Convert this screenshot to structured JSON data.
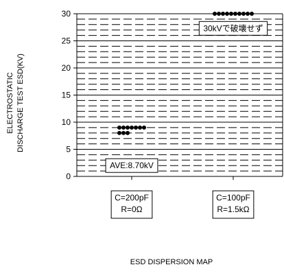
{
  "chart_data": {
    "type": "scatter",
    "title": "",
    "xlabel": "ESD DISPERSION MAP",
    "ylabel_lines": [
      "ELECTROSTATIC",
      "DISCHARGE TEST ESD(KV)"
    ],
    "ylim": [
      0,
      30
    ],
    "yticks": [
      0,
      5,
      10,
      15,
      20,
      25,
      30
    ],
    "grid": true,
    "categories": [
      {
        "lines": [
          "C=200pF",
          "R=0Ω"
        ]
      },
      {
        "lines": [
          "C=100pF",
          "R=1.5kΩ"
        ]
      }
    ],
    "series": [
      {
        "category_index": 0,
        "points": [
          {
            "y": 9.0,
            "offset": -3
          },
          {
            "y": 9.0,
            "offset": -2
          },
          {
            "y": 9.0,
            "offset": -1
          },
          {
            "y": 9.0,
            "offset": 0
          },
          {
            "y": 9.0,
            "offset": 1
          },
          {
            "y": 9.0,
            "offset": 2
          },
          {
            "y": 9.0,
            "offset": 3
          },
          {
            "y": 8.0,
            "offset": -3
          },
          {
            "y": 8.0,
            "offset": -2
          },
          {
            "y": 8.0,
            "offset": -1
          }
        ]
      },
      {
        "category_index": 1,
        "points": [
          {
            "y": 30,
            "offset": -4.5
          },
          {
            "y": 30,
            "offset": -3.5
          },
          {
            "y": 30,
            "offset": -2.5
          },
          {
            "y": 30,
            "offset": -1.5
          },
          {
            "y": 30,
            "offset": -0.5
          },
          {
            "y": 30,
            "offset": 0.5
          },
          {
            "y": 30,
            "offset": 1.5
          },
          {
            "y": 30,
            "offset": 2.5
          },
          {
            "y": 30,
            "offset": 3.5
          },
          {
            "y": 30,
            "offset": 4.5
          }
        ]
      }
    ],
    "annotations": [
      {
        "text": "AVE:8.70kV",
        "category_index": 0,
        "y": 2.0
      },
      {
        "text": "30kVで破壊せず",
        "category_index": 1,
        "y": 27.3
      }
    ],
    "colors": {
      "marker": "#000000",
      "grid": "#000000",
      "axis": "#000000"
    }
  }
}
